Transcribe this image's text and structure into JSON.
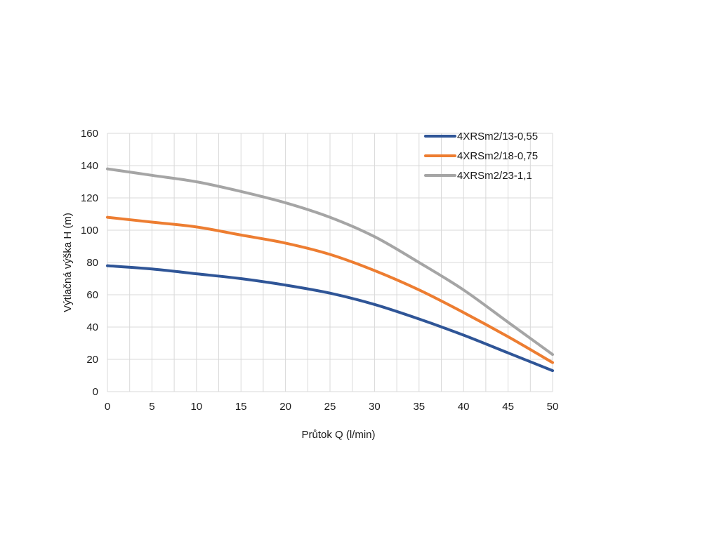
{
  "chart_data": {
    "type": "line",
    "xlabel": "Průtok Q (l/min)",
    "ylabel": "Výtlačná výška H (m)",
    "xlim": [
      0,
      50
    ],
    "ylim": [
      0,
      160
    ],
    "x_ticks": [
      0,
      5,
      10,
      15,
      20,
      25,
      30,
      35,
      40,
      45,
      50
    ],
    "y_ticks": [
      0,
      20,
      40,
      60,
      80,
      100,
      120,
      140,
      160
    ],
    "x_tick_labels": [
      "0",
      "5",
      "10",
      "15",
      "20",
      "25",
      "30",
      "35",
      "40",
      "45",
      "50"
    ],
    "y_tick_labels": [
      "0",
      "20",
      "40",
      "60",
      "80",
      "100",
      "120",
      "140",
      "160"
    ],
    "x_minor_step": 2.5,
    "grid": true,
    "legend_position": "top-right",
    "x": [
      0,
      5,
      10,
      15,
      20,
      25,
      30,
      35,
      40,
      45,
      50
    ],
    "series": [
      {
        "name": "4XRSm2/13-0,55",
        "color": "#2f5597",
        "values": [
          78,
          76,
          73,
          70,
          66,
          61,
          54,
          45,
          35,
          24,
          13
        ]
      },
      {
        "name": "4XRSm2/18-0,75",
        "color": "#ed7d31",
        "values": [
          108,
          105,
          102,
          97,
          92,
          85,
          75,
          63,
          49,
          34,
          18
        ]
      },
      {
        "name": "4XRSm2/23-1,1",
        "color": "#a5a5a5",
        "values": [
          138,
          134,
          130,
          124,
          117,
          108,
          96,
          80,
          63,
          43,
          23
        ]
      }
    ]
  }
}
